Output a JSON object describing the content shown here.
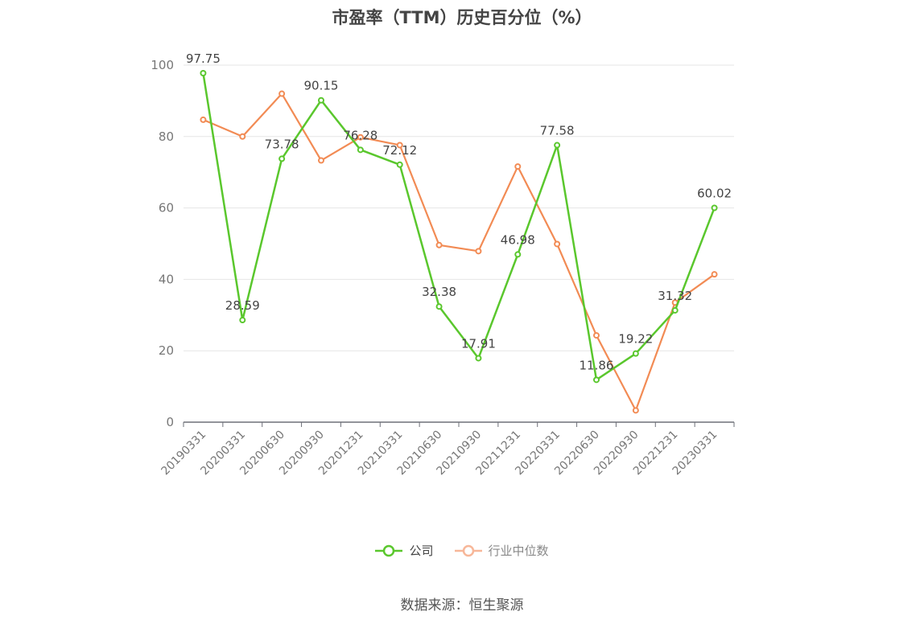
{
  "chart_data": {
    "type": "line",
    "title": "市盈率（TTM）历史百分位（%）",
    "categories": [
      "20190331",
      "20200331",
      "20200630",
      "20200930",
      "20201231",
      "20210331",
      "20210630",
      "20210930",
      "20211231",
      "20220331",
      "20220630",
      "20220930",
      "20221231",
      "20230331"
    ],
    "ylim": [
      0,
      100
    ],
    "yticks": [
      0,
      20,
      40,
      60,
      80,
      100
    ],
    "grid": true,
    "legend_position": "bottom",
    "series": [
      {
        "name": "公司",
        "color": "#5ac72d",
        "values": [
          97.75,
          28.59,
          73.78,
          90.15,
          76.28,
          72.12,
          32.38,
          17.91,
          46.98,
          77.58,
          11.86,
          19.22,
          31.32,
          60.02
        ],
        "labels": [
          "97.75",
          "28.59",
          "73.78",
          "90.15",
          "76.28",
          "72.12",
          "32.38",
          "17.91",
          "46.98",
          "77.58",
          "11.86",
          "19.22",
          "31.32",
          "60.02"
        ]
      },
      {
        "name": "行业中位数",
        "color": "#f28b54",
        "values": [
          84.7,
          80.0,
          92.0,
          73.3,
          79.8,
          77.6,
          49.6,
          47.9,
          71.6,
          49.9,
          24.3,
          3.3,
          33.5,
          41.4
        ]
      }
    ]
  },
  "footer": {
    "source": "数据来源：恒生聚源"
  }
}
